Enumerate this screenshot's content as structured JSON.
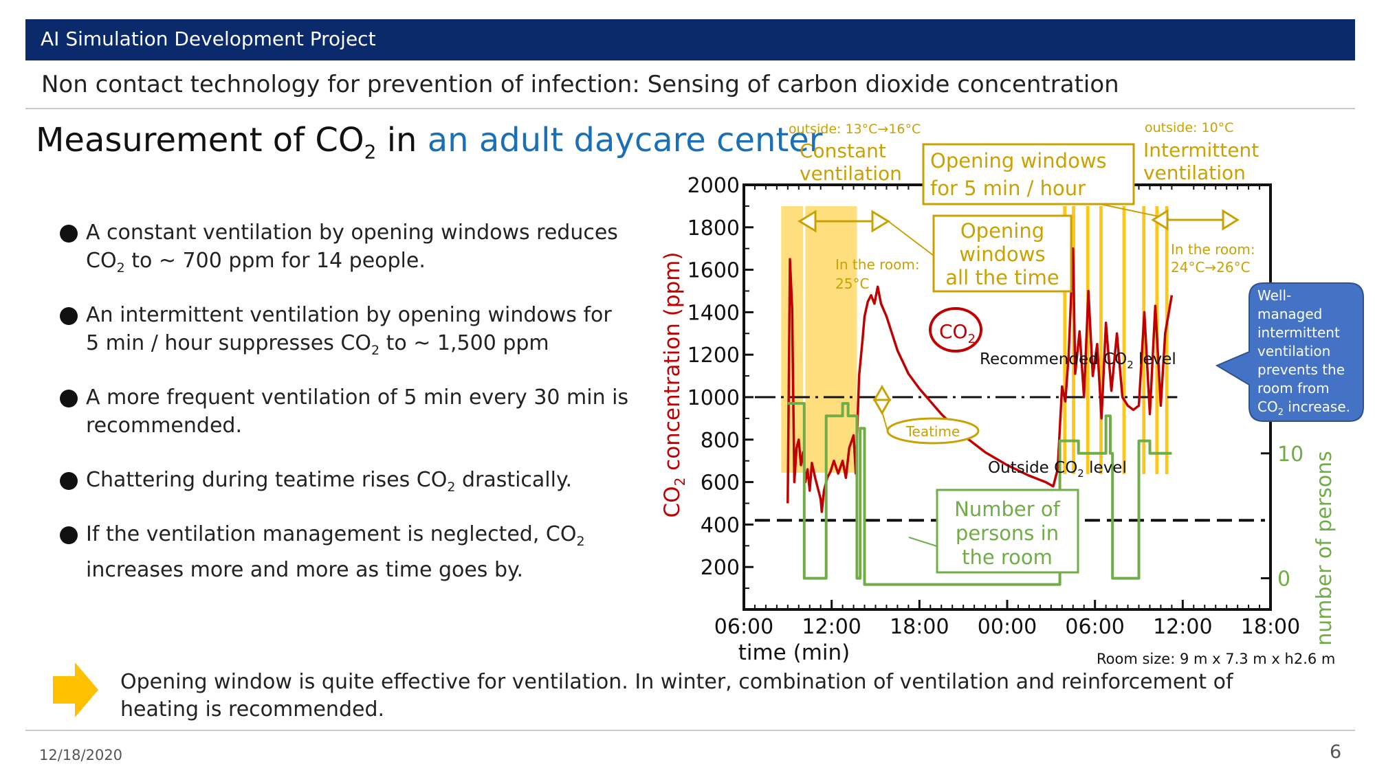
{
  "header": {
    "title": "AI Simulation Development Project"
  },
  "subtitle": "Non contact technology for prevention of infection:  Sensing of carbon dioxide concentration",
  "main_title": {
    "prefix": "Measurement of CO",
    "sub": "2",
    "mid": " in ",
    "highlight": "an adult daycare center"
  },
  "bullets": [
    {
      "a": "A constant ventilation by opening windows reduces CO",
      "sub": "2",
      "b": " to ~ 700 ppm for 14 people."
    },
    {
      "a": "An intermittent ventilation by opening windows for 5 min / hour suppresses CO",
      "sub": "2",
      "b": " to ~ 1,500 ppm"
    },
    {
      "a": "A more frequent ventilation of 5 min every 30 min is recommended.",
      "sub": "",
      "b": ""
    },
    {
      "a": "Chattering during teatime rises CO",
      "sub": "2",
      "b": " drastically."
    },
    {
      "a": "If the ventilation management is neglected, CO",
      "sub": "2",
      "b": " increases more and more as time goes by."
    }
  ],
  "conclusion": "Opening window is quite effective for ventilation.  In winter, combination of ventilation and reinforcement of heating is recommended.",
  "footer": {
    "date": "12/18/2020",
    "page": "6"
  },
  "colors": {
    "header": "#0b2a6b",
    "co2": "#c00000",
    "persons": "#70ad47",
    "window": "#ffd966",
    "annotation": "#c9a100",
    "callout": "#4472c4",
    "arrow": "#ffc000"
  },
  "chart_data": {
    "type": "line",
    "xlabel": "time (min)",
    "ylabel_prefix": "CO",
    "ylabel_sub": "2",
    "ylabel_suffix": " concentration (ppm)",
    "y2label": "number of persons",
    "x_ticks": [
      "06:00",
      "12:00",
      "18:00",
      "00:00",
      "06:00",
      "12:00",
      "18:00"
    ],
    "y_ticks": [
      200,
      400,
      600,
      800,
      1000,
      1200,
      1400,
      1600,
      1800,
      2000
    ],
    "y2_ticks": [
      0,
      10
    ],
    "x_range_hours": [
      6,
      54
    ],
    "y_range": [
      0,
      2000
    ],
    "y2_range": [
      -2.5,
      31.5
    ],
    "recommended_level": 1000,
    "recommended_label_a": "Recommended CO",
    "recommended_label_sub": "2",
    "recommended_label_b": " level",
    "outside_level": 420,
    "outside_label_a": "Outside CO",
    "outside_label_sub": "2",
    "outside_label_b": " level",
    "series": [
      {
        "name": "CO2",
        "label_main": "CO",
        "label_sub": "2",
        "points": [
          [
            10.0,
            500
          ],
          [
            10.2,
            1650
          ],
          [
            10.4,
            1420
          ],
          [
            10.6,
            600
          ],
          [
            10.8,
            760
          ],
          [
            11.0,
            800
          ],
          [
            11.2,
            680
          ],
          [
            11.4,
            740
          ],
          [
            11.6,
            600
          ],
          [
            11.8,
            660
          ],
          [
            12.0,
            560
          ],
          [
            12.2,
            690
          ],
          [
            12.5,
            620
          ],
          [
            12.8,
            560
          ],
          [
            13.0,
            520
          ],
          [
            13.1,
            460
          ],
          [
            13.3,
            560
          ],
          [
            13.6,
            620
          ],
          [
            13.9,
            650
          ],
          [
            14.2,
            700
          ],
          [
            14.6,
            640
          ],
          [
            15.0,
            700
          ],
          [
            15.3,
            620
          ],
          [
            15.6,
            760
          ],
          [
            16.0,
            820
          ],
          [
            16.2,
            640
          ],
          [
            16.5,
            1100
          ],
          [
            16.8,
            1260
          ],
          [
            17.0,
            1380
          ],
          [
            17.3,
            1450
          ],
          [
            17.6,
            1480
          ],
          [
            17.9,
            1440
          ],
          [
            18.2,
            1520
          ],
          [
            18.5,
            1440
          ],
          [
            19.0,
            1380
          ],
          [
            20.0,
            1220
          ],
          [
            21.0,
            1110
          ],
          [
            22.0,
            1040
          ],
          [
            24.0,
            920
          ],
          [
            26.0,
            820
          ],
          [
            28.0,
            740
          ],
          [
            30.0,
            680
          ],
          [
            32.0,
            630
          ],
          [
            33.5,
            600
          ],
          [
            34.2,
            580
          ],
          [
            34.6,
            660
          ],
          [
            35.0,
            1050
          ],
          [
            35.3,
            980
          ],
          [
            35.6,
            1200
          ],
          [
            36.0,
            1700
          ],
          [
            36.2,
            1110
          ],
          [
            36.6,
            1310
          ],
          [
            37.0,
            1000
          ],
          [
            37.4,
            1500
          ],
          [
            37.8,
            1100
          ],
          [
            38.2,
            1250
          ],
          [
            38.6,
            900
          ],
          [
            39.0,
            1350
          ],
          [
            39.5,
            1030
          ],
          [
            40.0,
            1300
          ],
          [
            40.5,
            1000
          ],
          [
            41.0,
            960
          ],
          [
            41.5,
            940
          ],
          [
            42.0,
            960
          ],
          [
            42.5,
            1400
          ],
          [
            43.0,
            920
          ],
          [
            43.5,
            1430
          ],
          [
            44.0,
            960
          ],
          [
            44.4,
            1300
          ],
          [
            45.0,
            1480
          ]
        ]
      },
      {
        "name": "number of persons",
        "points": [
          [
            10.0,
            14
          ],
          [
            11.5,
            14
          ],
          [
            11.5,
            0
          ],
          [
            13.5,
            0
          ],
          [
            13.5,
            13
          ],
          [
            15.0,
            13
          ],
          [
            15.0,
            14
          ],
          [
            15.5,
            14
          ],
          [
            15.5,
            13
          ],
          [
            16.3,
            13
          ],
          [
            16.3,
            0
          ],
          [
            16.6,
            0
          ],
          [
            16.6,
            12
          ],
          [
            17.0,
            12
          ],
          [
            17.0,
            -0.5
          ],
          [
            17.5,
            -0.5
          ],
          [
            17.5,
            -0.5
          ],
          [
            34.8,
            -0.5
          ],
          [
            34.8,
            11
          ],
          [
            36.5,
            11
          ],
          [
            36.5,
            10
          ],
          [
            39.0,
            10
          ],
          [
            39.0,
            13
          ],
          [
            39.4,
            13
          ],
          [
            39.4,
            10
          ],
          [
            39.6,
            10
          ],
          [
            39.6,
            0
          ],
          [
            42.0,
            0
          ],
          [
            42.0,
            11
          ],
          [
            43.0,
            11
          ],
          [
            43.0,
            10
          ],
          [
            45.0,
            10
          ]
        ]
      }
    ],
    "window_bands": [
      {
        "x0": 9.4,
        "x1": 16.3,
        "type": "constant"
      },
      {
        "x0": 35.1,
        "x1": 35.4,
        "type": "intermittent"
      },
      {
        "x0": 35.9,
        "x1": 36.2,
        "type": "intermittent"
      },
      {
        "x0": 37.2,
        "x1": 37.5,
        "type": "intermittent"
      },
      {
        "x0": 38.4,
        "x1": 38.7,
        "type": "intermittent"
      },
      {
        "x0": 40.5,
        "x1": 40.8,
        "type": "intermittent"
      },
      {
        "x0": 42.3,
        "x1": 42.6,
        "type": "intermittent"
      },
      {
        "x0": 43.5,
        "x1": 43.8,
        "type": "intermittent"
      },
      {
        "x0": 44.4,
        "x1": 44.7,
        "type": "intermittent"
      }
    ],
    "annotations": {
      "outside_left": "outside: 13°C→16°C",
      "constant_l1": "Constant",
      "constant_l2": "ventilation",
      "box_5min_l1": "Opening windows",
      "box_5min_l2": "for 5 min / hour",
      "outside_right": "outside: 10°C",
      "intermittent_l1": "Intermittent",
      "intermittent_l2": "ventilation",
      "room_left_l1": "In the room:",
      "room_left_l2": "25°C",
      "box_alltime_l1": "Opening",
      "box_alltime_l2": "windows",
      "box_alltime_l3": "all the time",
      "room_right_l1": "In the room:",
      "room_right_l2": "24°C→26°C",
      "callout_l1": "Well-",
      "callout_l2": "managed",
      "callout_l3": "intermittent",
      "callout_l4": "ventilation",
      "callout_l5": "prevents the",
      "callout_l6": "room from",
      "callout_l7a": "CO",
      "callout_l7sub": "2",
      "callout_l7b": " increase.",
      "teatime": "Teatime",
      "persons_l1": "Number of",
      "persons_l2": "persons in",
      "persons_l3": "the room",
      "room_size": "Room size: 9 m x 7.3 m x h2.6 m"
    }
  }
}
